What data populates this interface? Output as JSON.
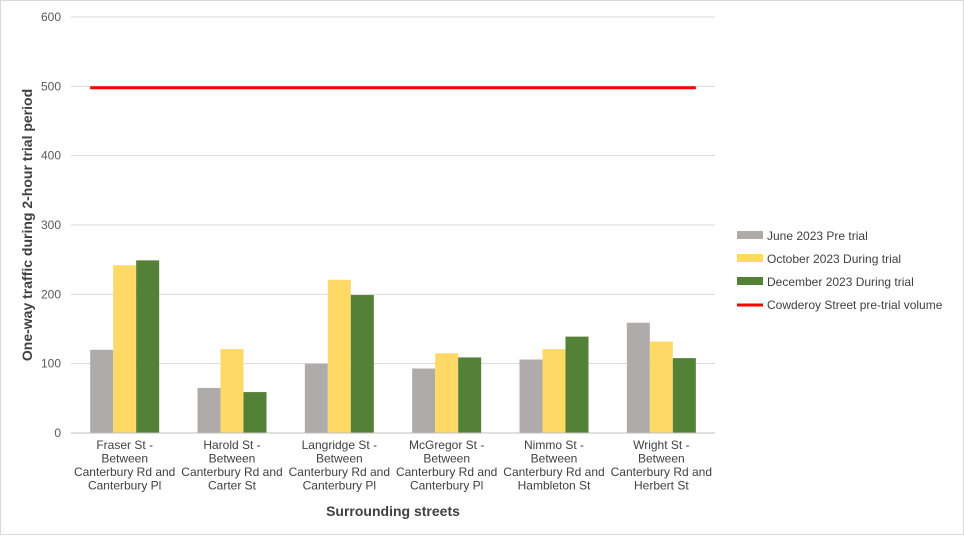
{
  "chart_data": {
    "type": "bar",
    "xlabel": "Surrounding streets",
    "ylabel": "One-way traffic during 2-hour trial period",
    "ylim": [
      0,
      600
    ],
    "yticks": [
      0,
      100,
      200,
      300,
      400,
      500,
      600
    ],
    "grid": true,
    "legend_position": "right",
    "categories": [
      [
        "Fraser St -",
        "Between",
        "Canterbury Rd and",
        "Canterbury Pl"
      ],
      [
        "Harold St -",
        "Between",
        "Canterbury Rd and",
        "Carter St"
      ],
      [
        "Langridge St -",
        "Between",
        "Canterbury Rd and",
        "Canterbury Pl"
      ],
      [
        "McGregor St -",
        "Between",
        "Canterbury Rd and",
        "Canterbury Pl"
      ],
      [
        "Nimmo St -",
        "Between",
        "Canterbury Rd and",
        "Hambleton St"
      ],
      [
        "Wright St -",
        "Between",
        "Canterbury Rd and",
        "Herbert St"
      ]
    ],
    "series": [
      {
        "name": "June 2023 Pre trial",
        "color": "#b0abab",
        "values": [
          120,
          65,
          100,
          93,
          106,
          159
        ]
      },
      {
        "name": "October 2023 During trial",
        "color": "#ffd966",
        "values": [
          242,
          121,
          221,
          115,
          121,
          132
        ]
      },
      {
        "name": "December 2023 During trial",
        "color": "#538135",
        "values": [
          249,
          59,
          199,
          109,
          139,
          108
        ]
      }
    ],
    "reference_line": {
      "name": "Cowderoy Street pre-trial volume",
      "color": "#ff0000",
      "value": 498
    }
  }
}
